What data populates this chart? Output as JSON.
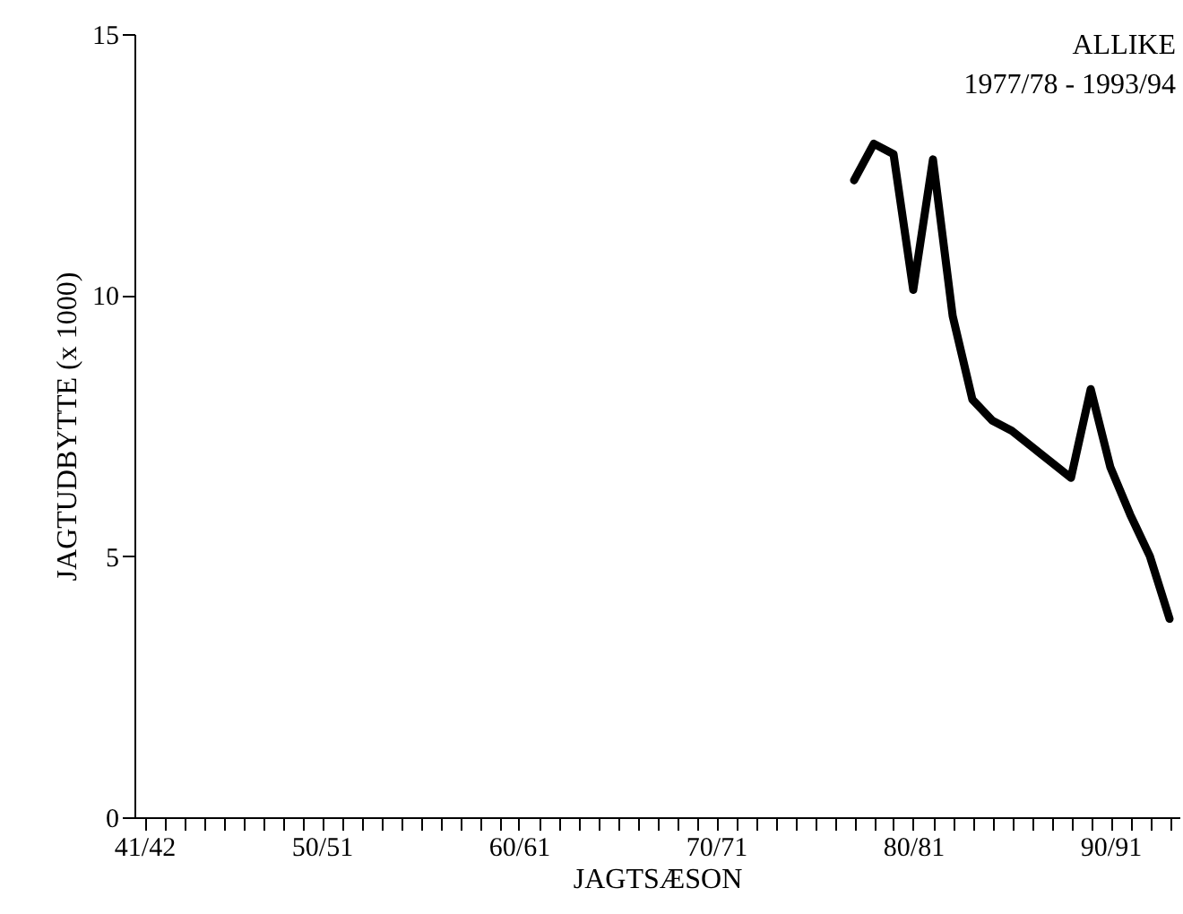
{
  "chart_data": {
    "type": "line",
    "xlabel": "JAGTSÆSON",
    "ylabel": "JAGTUDBYTTE (x 1000)",
    "annotations": [
      "ALLIKE",
      "1977/78 - 1993/94"
    ],
    "categories": [
      "41/42",
      null,
      null,
      null,
      null,
      null,
      null,
      null,
      null,
      "50/51",
      null,
      null,
      null,
      null,
      null,
      null,
      null,
      null,
      null,
      "60/61",
      null,
      null,
      null,
      null,
      null,
      null,
      null,
      null,
      null,
      "70/71",
      null,
      null,
      null,
      null,
      null,
      null,
      null,
      null,
      null,
      "80/81",
      null,
      null,
      null,
      null,
      null,
      null,
      null,
      null,
      null,
      "90/91",
      null,
      null,
      null
    ],
    "series": [
      {
        "color": "#000000",
        "values": [
          null,
          null,
          null,
          null,
          null,
          null,
          null,
          null,
          null,
          null,
          null,
          null,
          null,
          null,
          null,
          null,
          null,
          null,
          null,
          null,
          null,
          null,
          null,
          null,
          null,
          null,
          null,
          null,
          null,
          null,
          null,
          null,
          null,
          null,
          null,
          null,
          12.2,
          12.9,
          12.7,
          10.1,
          12.6,
          9.6,
          8.0,
          7.6,
          7.4,
          7.1,
          6.8,
          6.5,
          8.2,
          6.7,
          5.8,
          5.0,
          3.8
        ]
      }
    ],
    "ylim": [
      0,
      15
    ],
    "yticks": [
      0,
      5,
      10,
      15
    ],
    "grid": false,
    "marker": "none",
    "line_style": "solid"
  }
}
